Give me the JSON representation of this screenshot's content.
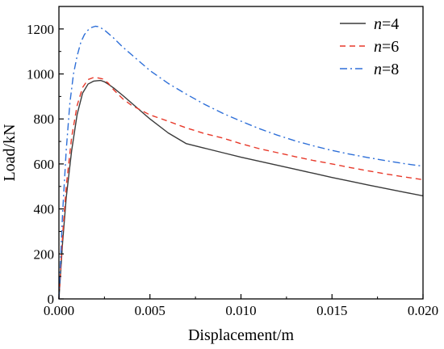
{
  "chart_data": {
    "type": "line",
    "title": "",
    "xlabel": "Displacement/m",
    "ylabel": "Load/kN",
    "xlim": [
      0,
      0.02
    ],
    "ylim": [
      0,
      1300
    ],
    "xticks": [
      "0.000",
      "0.005",
      "0.010",
      "0.015",
      "0.020"
    ],
    "yticks": [
      "0",
      "200",
      "400",
      "600",
      "800",
      "1000",
      "1200"
    ],
    "grid": false,
    "legend_position": "top-right",
    "series": [
      {
        "name": "n=4",
        "legend_italic": "n",
        "legend_rest": "=4",
        "color": "#3a3a3a",
        "dash": "solid",
        "x": [
          0,
          0.0002,
          0.0004,
          0.0007,
          0.001,
          0.0013,
          0.0016,
          0.0019,
          0.0021,
          0.0023,
          0.0025,
          0.0027,
          0.003,
          0.0035,
          0.004,
          0.005,
          0.006,
          0.007,
          0.008,
          0.009,
          0.01,
          0.011,
          0.012,
          0.013,
          0.014,
          0.015,
          0.016,
          0.017,
          0.018,
          0.019,
          0.02
        ],
        "y": [
          0,
          250,
          450,
          660,
          820,
          915,
          955,
          968,
          970,
          971,
          965,
          955,
          938,
          905,
          870,
          800,
          738,
          690,
          670,
          650,
          630,
          612,
          594,
          576,
          558,
          540,
          523,
          506,
          490,
          474,
          458
        ]
      },
      {
        "name": "n=6",
        "legend_italic": "n",
        "legend_rest": "=6",
        "color": "#e8392a",
        "dash": "dashed",
        "x": [
          0,
          0.0002,
          0.0004,
          0.0007,
          0.001,
          0.0013,
          0.0016,
          0.0019,
          0.0021,
          0.0024,
          0.0027,
          0.003,
          0.0035,
          0.004,
          0.005,
          0.006,
          0.007,
          0.008,
          0.009,
          0.01,
          0.011,
          0.012,
          0.013,
          0.014,
          0.015,
          0.016,
          0.017,
          0.018,
          0.019,
          0.02
        ],
        "y": [
          0,
          280,
          500,
          720,
          860,
          940,
          975,
          984,
          983,
          978,
          960,
          930,
          890,
          860,
          818,
          790,
          760,
          735,
          715,
          690,
          668,
          650,
          632,
          615,
          600,
          584,
          569,
          555,
          542,
          530
        ]
      },
      {
        "name": "n=8",
        "legend_italic": "n",
        "legend_rest": "=8",
        "color": "#2e6fd8",
        "dash": "dashdot",
        "x": [
          0,
          0.0002,
          0.0004,
          0.0006,
          0.0008,
          0.001,
          0.0012,
          0.0014,
          0.0016,
          0.0018,
          0.002,
          0.0022,
          0.0025,
          0.003,
          0.0035,
          0.004,
          0.005,
          0.006,
          0.007,
          0.008,
          0.009,
          0.01,
          0.011,
          0.012,
          0.013,
          0.014,
          0.015,
          0.016,
          0.017,
          0.018,
          0.019,
          0.02
        ],
        "y": [
          0,
          380,
          660,
          870,
          1000,
          1080,
          1140,
          1175,
          1195,
          1207,
          1212,
          1210,
          1195,
          1160,
          1120,
          1085,
          1015,
          958,
          910,
          865,
          825,
          790,
          757,
          728,
          702,
          680,
          660,
          643,
          628,
          614,
          601,
          590
        ]
      }
    ]
  }
}
